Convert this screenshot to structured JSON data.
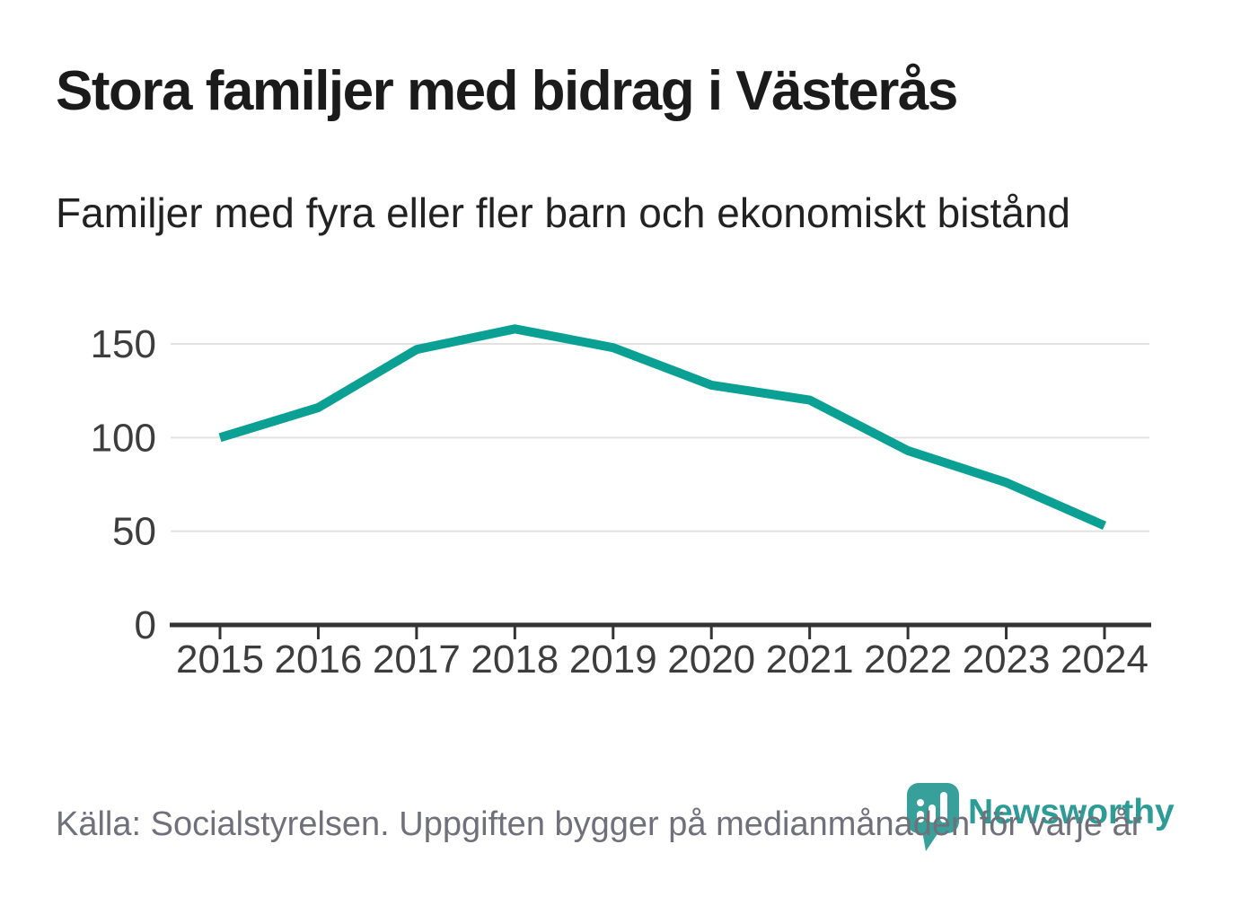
{
  "header": {
    "title": "Stora familjer med bidrag i Västerås",
    "subtitle": "Familjer med fyra eller fler barn och ekonomiskt bistånd"
  },
  "chart_data": {
    "type": "line",
    "title": "Stora familjer med bidrag i Västerås",
    "subtitle": "Familjer med fyra eller fler barn och ekonomiskt bistånd",
    "categories": [
      "2015",
      "2016",
      "2017",
      "2018",
      "2019",
      "2020",
      "2021",
      "2022",
      "2023",
      "2024"
    ],
    "series": [
      {
        "name": "Familjer med fyra eller fler barn och ekonomiskt bistånd",
        "values": [
          100,
          116,
          147,
          158,
          148,
          128,
          120,
          93,
          76,
          53
        ]
      }
    ],
    "xlabel": "",
    "ylabel": "",
    "ylim": [
      0,
      165
    ],
    "yticks": [
      0,
      50,
      100,
      150
    ],
    "grid": true,
    "legend": "none",
    "line_color": "#0ba094",
    "grid_color": "#e2e2e2",
    "axis_color": "#333333",
    "tick_label_color": "#3d3d3d"
  },
  "footer": {
    "source": "Källa: Socialstyrelsen. Uppgiften bygger på medianmånaden för varje år"
  },
  "logo": {
    "wordmark": "Newsworthy",
    "icon": "newsworthy-pin-bar-chart-icon",
    "wordmark_color": "#2e9c96",
    "icon_color": "#38a09a"
  }
}
